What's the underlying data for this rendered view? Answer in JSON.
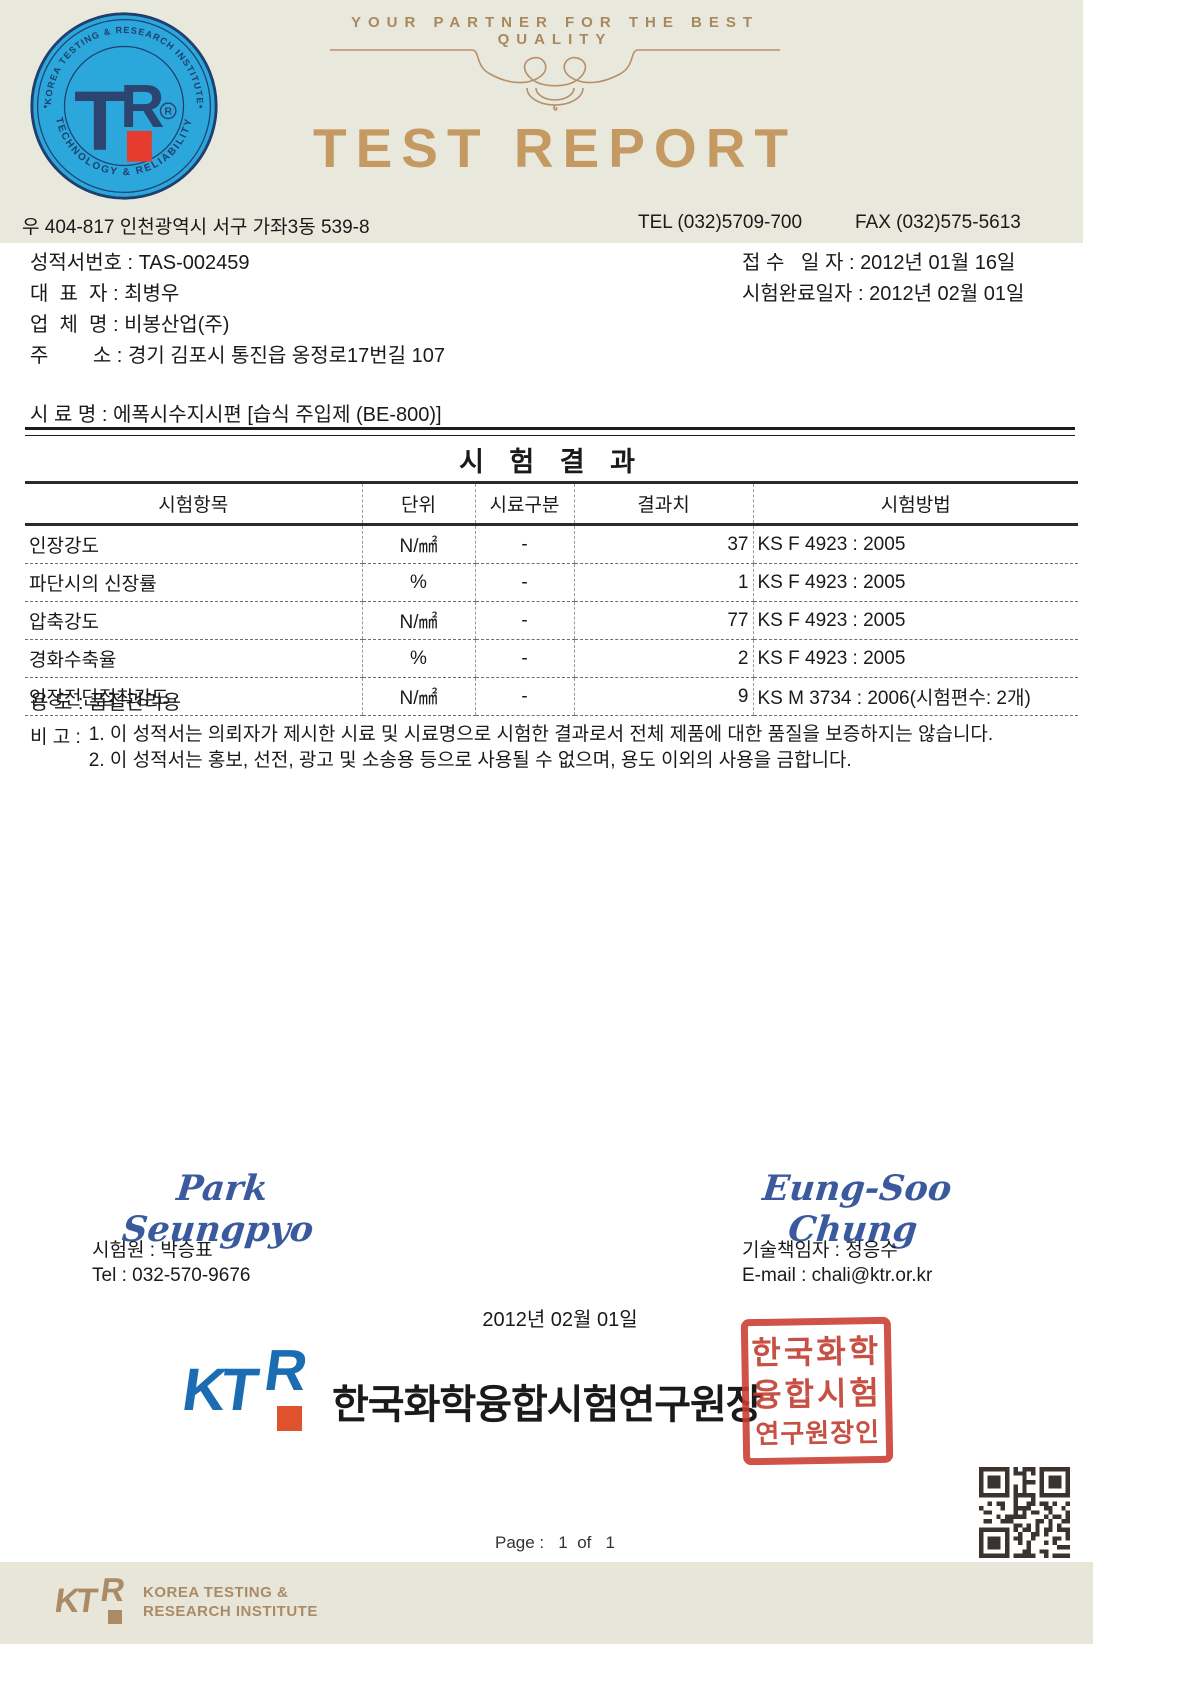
{
  "header": {
    "tagline": "YOUR PARTNER FOR THE BEST QUALITY",
    "title": "TEST REPORT",
    "address": "우 404-817 인천광역시 서구 가좌3동 539-8",
    "tel": "TEL (032)5709-700",
    "fax": "FAX (032)575-5613",
    "seal": {
      "arc_top": "KOREA TESTING & RESEARCH INSTITUTE",
      "arc_bottom": "TECHNOLOGY & RELIABILITY",
      "center": "TR",
      "registered": "®"
    }
  },
  "report_info": {
    "left": [
      {
        "label": "성적서번호 :",
        "value": "TAS-002459"
      },
      {
        "label": "대  표  자 :",
        "value": "최병우"
      },
      {
        "label": "업  체  명 :",
        "value": "비봉산업(주)"
      },
      {
        "label": "주        소 :",
        "value": "경기 김포시 통진읍 옹정로17번길 107"
      }
    ],
    "right": [
      {
        "label": "접 수   일 자 :",
        "value": "2012년 01월 16일"
      },
      {
        "label": "시험완료일자 :",
        "value": "2012년 02월 01일"
      }
    ],
    "sample": {
      "label": "시  료  명 :",
      "value": "에폭시수지시편 [습식 주입제 (BE-800)]"
    }
  },
  "results": {
    "title": "시 험 결 과",
    "columns": [
      "시험항목",
      "단위",
      "시료구분",
      "결과치",
      "시험방법"
    ],
    "rows": [
      [
        "인장강도",
        "N/㎟",
        "-",
        "37",
        "KS F 4923 : 2005"
      ],
      [
        "파단시의 신장률",
        "%",
        "-",
        "1",
        "KS F 4923 : 2005"
      ],
      [
        "압축강도",
        "N/㎟",
        "-",
        "77",
        "KS F 4923 : 2005"
      ],
      [
        "경화수축율",
        "%",
        "-",
        "2",
        "KS F 4923 : 2005"
      ],
      [
        "인장전단접착강도",
        "N/㎟",
        "-",
        "9",
        "KS M 3734 : 2006(시험편수: 2개)"
      ]
    ],
    "usage": {
      "label": "용 도 :",
      "value": "품질관리용"
    },
    "remarks_label": "비 고 :",
    "remarks": [
      "1. 이 성적서는 의뢰자가 제시한 시료 및 시료명으로 시험한 결과로서 전체 제품에 대한 품질을 보증하지는 않습니다.",
      "2. 이 성적서는 홍보, 선전, 광고 및 소송용 등으로 사용될 수 없으며, 용도 이외의 사용을 금합니다."
    ]
  },
  "signatures": {
    "left": {
      "signature": "Park Seungpyo",
      "name_line": "시험원 : 박승표",
      "contact_line": "Tel : 032-570-9676"
    },
    "right": {
      "signature": "Eung-Soo Chung",
      "name_line": "기술책임자 : 정응수",
      "contact_line": "E-mail : chali@ktr.or.kr"
    }
  },
  "issue": {
    "date": "2012년 02월 01일",
    "org_logo_kt": "KT",
    "org_logo_r": "R",
    "org_title": "한국화학융합시험연구원장",
    "stamp_rows": [
      "한국화학",
      "융합시험",
      "연구원장인"
    ]
  },
  "footer": {
    "page_text": "Page :   1  of   1",
    "logo_kt": "KT",
    "logo_r": "R",
    "org_name_line1": "KOREA TESTING &",
    "org_name_line2": "RESEARCH INSTITUTE"
  },
  "colors": {
    "header_band": "#e9e8dc",
    "footer_band": "#e7e6d9",
    "title_tan": "#c49a62",
    "tagline_tan": "#a8895e",
    "seal_blue": "#2ba7dc",
    "seal_navy": "#1f3f6e",
    "seal_red": "#e63c2f",
    "ktr_blue": "#1a6cb3",
    "ktr_orange": "#e0522d",
    "signature_blue": "#3b5a9d",
    "stamp_red": "#cb3b2e",
    "footer_tan": "#ab8a66"
  }
}
